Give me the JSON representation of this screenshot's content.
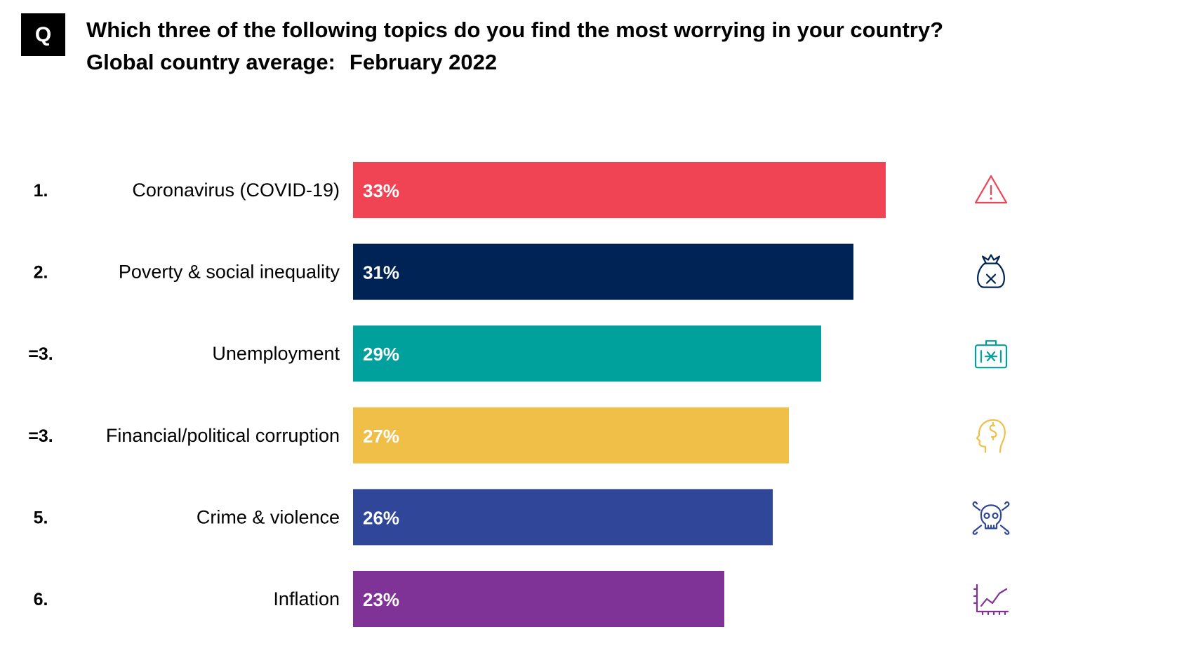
{
  "header": {
    "badge": "Q",
    "title": "Which three of the following topics do you find the most worrying in your country?",
    "subtitle_prefix": "Global country average:",
    "subtitle_date": "February 2022"
  },
  "chart_data": {
    "type": "bar",
    "orientation": "horizontal",
    "title": "Which three of the following topics do you find the most worrying in your country?",
    "subtitle": "Global country average: February 2022",
    "unit": "%",
    "xlim": [
      0,
      38
    ],
    "grid": false,
    "categories": [
      "Coronavirus (COVID-19)",
      "Poverty & social inequality",
      "Unemployment",
      "Financial/political corruption",
      "Crime & violence",
      "Inflation"
    ],
    "ranks": [
      "1.",
      "2.",
      "=3.",
      "=3.",
      "5.",
      "6."
    ],
    "values": [
      33,
      31,
      29,
      27,
      26,
      23
    ],
    "value_labels": [
      "33%",
      "31%",
      "29%",
      "27%",
      "26%",
      "23%"
    ],
    "colors": [
      "#f04353",
      "#002355",
      "#00a09d",
      "#f0bf48",
      "#2f4699",
      "#7f3396"
    ],
    "icons": [
      "warning-icon",
      "money-bag-icon",
      "briefcase-icon",
      "head-dollar-icon",
      "skull-crossbones-icon",
      "line-chart-icon"
    ]
  }
}
